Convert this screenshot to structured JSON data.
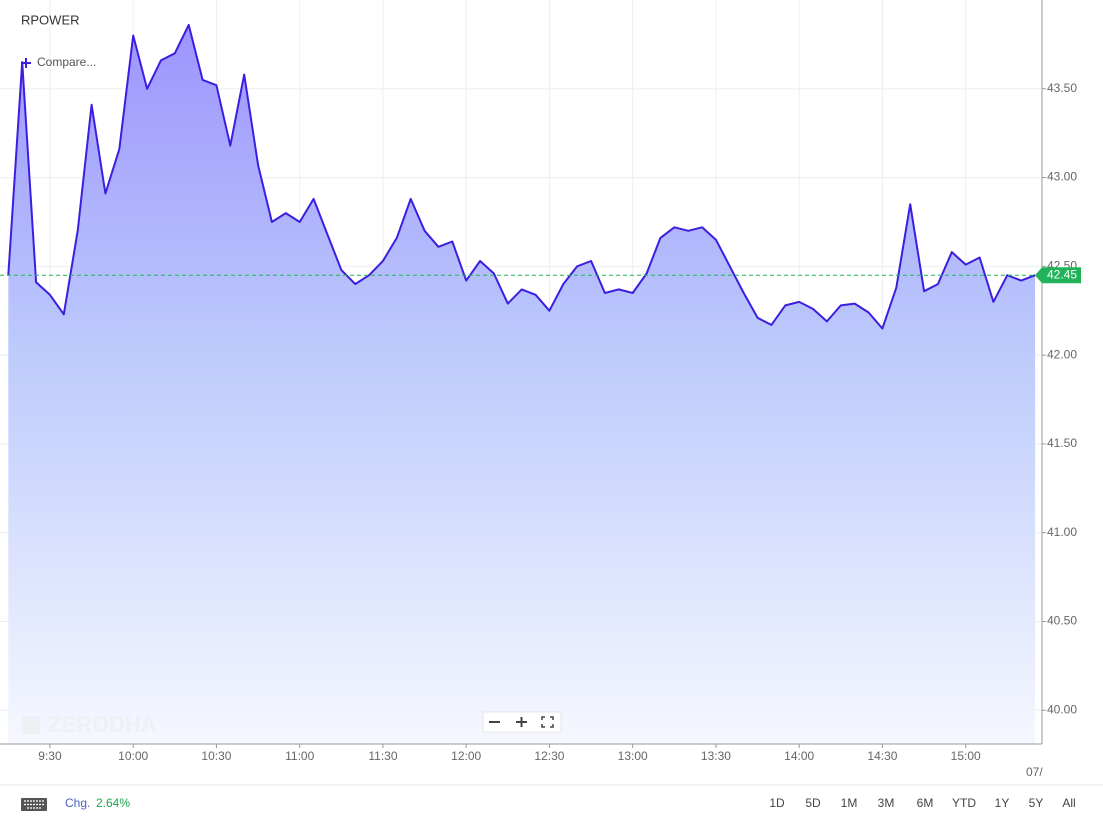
{
  "chart_data": {
    "type": "area",
    "title": "RPOWER",
    "x": [
      555,
      560,
      565,
      570,
      575,
      580,
      585,
      590,
      595,
      600,
      605,
      610,
      615,
      620,
      625,
      630,
      635,
      640,
      645,
      650,
      655,
      660,
      665,
      670,
      675,
      680,
      685,
      690,
      695,
      700,
      705,
      710,
      715,
      720,
      725,
      730,
      735,
      740,
      745,
      750,
      755,
      760,
      765,
      770,
      775,
      780,
      785,
      790,
      795,
      800,
      805,
      810,
      815,
      820,
      825,
      830,
      835,
      840,
      845,
      850,
      855,
      860,
      865,
      870,
      875,
      880,
      885,
      890,
      895,
      900,
      905,
      910,
      915,
      920,
      925
    ],
    "values": [
      42.45,
      43.65,
      42.41,
      42.34,
      42.23,
      42.7,
      43.41,
      42.91,
      43.16,
      43.8,
      43.5,
      43.66,
      43.7,
      43.86,
      43.55,
      43.52,
      43.18,
      43.58,
      43.07,
      42.75,
      42.8,
      42.75,
      42.88,
      42.68,
      42.48,
      42.4,
      42.45,
      42.53,
      42.66,
      42.88,
      42.7,
      42.61,
      42.64,
      42.42,
      42.53,
      42.46,
      42.29,
      42.37,
      42.34,
      42.25,
      42.4,
      42.5,
      42.53,
      42.35,
      42.37,
      42.35,
      42.46,
      42.66,
      42.72,
      42.7,
      42.72,
      42.65,
      42.5,
      42.35,
      42.21,
      42.17,
      42.28,
      42.3,
      42.26,
      42.19,
      42.28,
      42.29,
      42.24,
      42.15,
      42.38,
      42.85,
      42.36,
      42.4,
      42.58,
      42.51,
      42.55,
      42.3,
      42.45,
      42.42,
      42.45
    ],
    "color": "#3b1fe0",
    "last_value": 42.45,
    "last_value_color": "#21b35a",
    "xlim": [
      552,
      927.5
    ],
    "ylim": [
      39.81,
      44.0
    ],
    "xticks": [
      {
        "value": 570,
        "label": "9:30"
      },
      {
        "value": 600,
        "label": "10:00"
      },
      {
        "value": 630,
        "label": "10:30"
      },
      {
        "value": 660,
        "label": "11:00"
      },
      {
        "value": 690,
        "label": "11:30"
      },
      {
        "value": 720,
        "label": "12:00"
      },
      {
        "value": 750,
        "label": "12:30"
      },
      {
        "value": 780,
        "label": "13:00"
      },
      {
        "value": 810,
        "label": "13:30"
      },
      {
        "value": 840,
        "label": "14:00"
      },
      {
        "value": 870,
        "label": "14:30"
      },
      {
        "value": 900,
        "label": "15:00"
      }
    ],
    "yticks": [
      {
        "value": 40,
        "label": "40.00"
      },
      {
        "value": 40.5,
        "label": "40.50"
      },
      {
        "value": 41,
        "label": "41.00"
      },
      {
        "value": 41.5,
        "label": "41.50"
      },
      {
        "value": 42,
        "label": "42.00"
      },
      {
        "value": 42.5,
        "label": "42.50"
      },
      {
        "value": 43,
        "label": "43.00"
      },
      {
        "value": 43.5,
        "label": "43.50"
      }
    ],
    "grid": true
  },
  "ui": {
    "compare": "Compare...",
    "watermark": "ZERODHA",
    "date_marker": "07/",
    "change_label": "Chg.",
    "change_value": "2.64%",
    "periods": [
      "1D",
      "5D",
      "1M",
      "3M",
      "6M",
      "YTD",
      "1Y",
      "5Y",
      "All"
    ]
  }
}
